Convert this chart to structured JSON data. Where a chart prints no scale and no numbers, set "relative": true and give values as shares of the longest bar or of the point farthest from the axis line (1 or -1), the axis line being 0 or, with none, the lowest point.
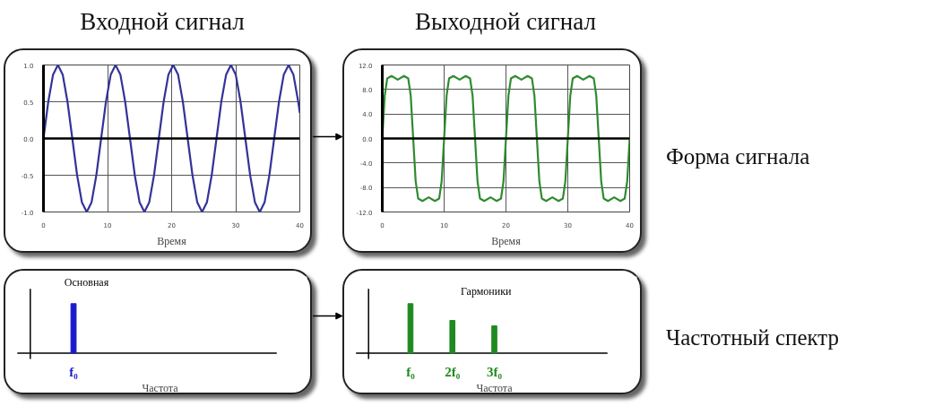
{
  "chart_data": [
    {
      "type": "line",
      "title": "Входной сигнал",
      "xlabel": "Время",
      "x": [
        0,
        0.75,
        1.5,
        2.25,
        3,
        3.75,
        4.5,
        5.25,
        6,
        6.75,
        7.5,
        8.25,
        9,
        9.75,
        10.5,
        11.25,
        12,
        12.75,
        13.5,
        14.25,
        15,
        15.75,
        16.5,
        17.25,
        18,
        18.75,
        19.5,
        20.25,
        21,
        21.75,
        22.5,
        23.25,
        24,
        24.75,
        25.5,
        26.25,
        27,
        27.75,
        28.5,
        29.25,
        30,
        30.75,
        31.5,
        32.25,
        33,
        33.75,
        34.5,
        35.25,
        36,
        36.75,
        37.5,
        38.25,
        39,
        39.75,
        40
      ],
      "series": [
        {
          "color": "#333399",
          "values": [
            0,
            0.5,
            0.87,
            1,
            0.87,
            0.5,
            0,
            -0.5,
            -0.87,
            -1,
            -0.87,
            -0.5,
            0,
            0.5,
            0.87,
            1,
            0.87,
            0.5,
            0,
            -0.5,
            -0.87,
            -1,
            -0.87,
            -0.5,
            0,
            0.5,
            0.87,
            1,
            0.87,
            0.5,
            0,
            -0.5,
            -0.87,
            -1,
            -0.87,
            -0.5,
            0,
            0.5,
            0.87,
            1,
            0.87,
            0.5,
            0,
            -0.5,
            -0.87,
            -1,
            -0.87,
            -0.5,
            0,
            0.5,
            0.87,
            1,
            0.87,
            0.5,
            0.35
          ]
        }
      ],
      "xlim": [
        0,
        40
      ],
      "xticks": [
        0,
        10,
        20,
        30,
        40
      ],
      "ylim": [
        -1,
        1
      ],
      "yticks": [
        {
          "value": -1,
          "label": "-1.0"
        },
        {
          "value": -0.5,
          "label": "-0.5"
        },
        {
          "value": 0,
          "label": "0.0"
        },
        {
          "value": 0.5,
          "label": "0.5"
        },
        {
          "value": 1,
          "label": "1.0"
        }
      ],
      "grid": true,
      "ref_lines": [
        {
          "axis": "y",
          "value": 0
        }
      ]
    },
    {
      "type": "line",
      "title": "Выходной сигнал",
      "xlabel": "Время",
      "x": [
        0,
        0.4,
        0.8,
        1.5,
        2.5,
        3.5,
        4.2,
        4.6,
        5,
        5.4,
        5.8,
        6.5,
        7.5,
        8.5,
        9.2,
        9.6,
        10,
        10.4,
        10.8,
        11.5,
        12.5,
        13.5,
        14.2,
        14.6,
        15,
        15.4,
        15.8,
        16.5,
        17.5,
        18.5,
        19.2,
        19.6,
        20,
        20.4,
        20.8,
        21.5,
        22.5,
        23.5,
        24.2,
        24.6,
        25,
        25.4,
        25.8,
        26.5,
        27.5,
        28.5,
        29.2,
        29.6,
        30,
        30.4,
        30.8,
        31.5,
        32.5,
        33.5,
        34.2,
        34.6,
        35,
        35.4,
        35.8,
        36.5,
        37.5,
        38.5,
        39.2,
        39.6,
        40
      ],
      "series": [
        {
          "color": "#2e8b2e",
          "values": [
            0,
            7,
            9.8,
            10.2,
            9.6,
            10.2,
            9.8,
            7,
            0,
            -7,
            -9.8,
            -10.2,
            -9.6,
            -10.2,
            -9.8,
            -7,
            0,
            7,
            9.8,
            10.2,
            9.6,
            10.2,
            9.8,
            7,
            0,
            -7,
            -9.8,
            -10.2,
            -9.6,
            -10.2,
            -9.8,
            -7,
            0,
            7,
            9.8,
            10.2,
            9.6,
            10.2,
            9.8,
            7,
            0,
            -7,
            -9.8,
            -10.2,
            -9.6,
            -10.2,
            -9.8,
            -7,
            0,
            7,
            9.8,
            10.2,
            9.6,
            10.2,
            9.8,
            7,
            0,
            -7,
            -9.8,
            -10.2,
            -9.6,
            -10.2,
            -9.8,
            -7,
            0
          ]
        }
      ],
      "xlim": [
        0,
        40
      ],
      "xticks": [
        0,
        10,
        20,
        30,
        40
      ],
      "ylim": [
        -12,
        12
      ],
      "yticks": [
        {
          "value": -12,
          "label": "-12.0"
        },
        {
          "value": -8,
          "label": "-8.0"
        },
        {
          "value": -4,
          "label": "-4.0"
        },
        {
          "value": 0,
          "label": "0.0"
        },
        {
          "value": 4,
          "label": "4.0"
        },
        {
          "value": 8,
          "label": "8.0"
        },
        {
          "value": 12,
          "label": "12.0"
        }
      ],
      "grid": true,
      "ref_lines": [
        {
          "axis": "y",
          "value": 0
        }
      ]
    },
    {
      "type": "bar",
      "relative": true,
      "xlabel": "Частота",
      "categories": [
        "f₀"
      ],
      "series": [
        {
          "color": "#1a1acc",
          "values": [
            1
          ]
        }
      ],
      "annotations": [
        "Основная"
      ]
    },
    {
      "type": "bar",
      "relative": true,
      "xlabel": "Частота",
      "categories": [
        "f₀",
        "2f₀",
        "3f₀"
      ],
      "series": [
        {
          "color": "#1f8a1f",
          "values": [
            1,
            0.66,
            0.55
          ]
        }
      ],
      "annotations": [
        "Гармоники"
      ]
    },
    {
      "type": "other",
      "annotations": [
        "Форма сигнала",
        "Частотный спектр"
      ]
    }
  ]
}
